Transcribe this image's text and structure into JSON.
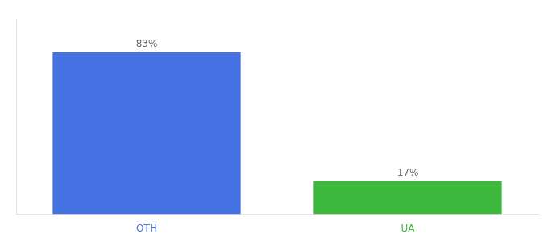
{
  "chart_data": {
    "type": "bar",
    "categories": [
      "OTH",
      "UA"
    ],
    "values": [
      83,
      17
    ],
    "value_labels": [
      "83%",
      "17%"
    ],
    "data_labels": true,
    "colors": [
      "#4472E3",
      "#3CB93C"
    ],
    "ylim": [
      0,
      100
    ],
    "tick_labels": "x",
    "grid": false
  }
}
